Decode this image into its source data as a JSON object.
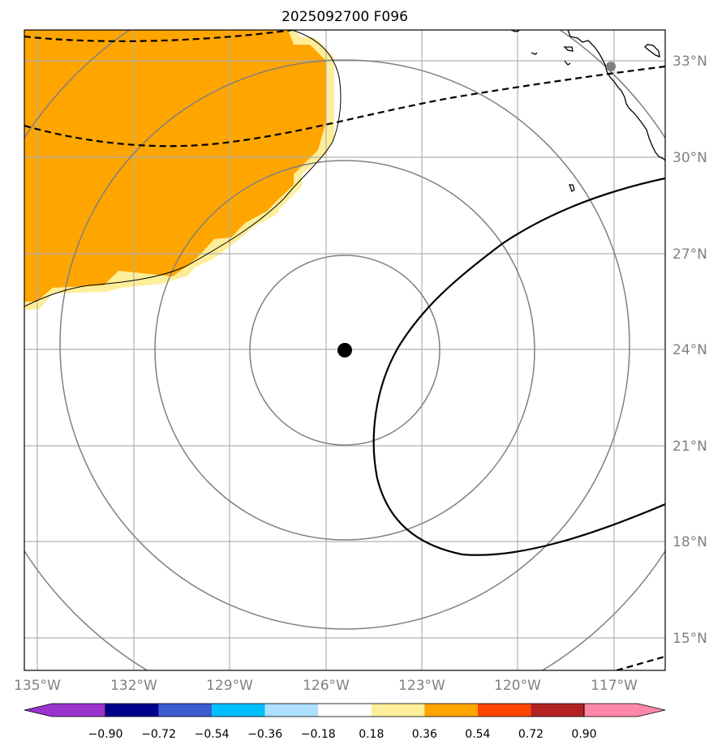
{
  "title": "2025092700 F096",
  "map": {
    "lon_ticks": [
      "135°W",
      "132°W",
      "129°W",
      "126°W",
      "123°W",
      "120°W",
      "117°W"
    ],
    "lat_ticks": [
      "33°N",
      "30°N",
      "27°N",
      "24°N",
      "21°N",
      "18°N",
      "15°N"
    ],
    "center": {
      "lon": -125.5,
      "lat": 24.0,
      "marker": "storm-center-dot"
    },
    "range_rings": "concentric circles around center",
    "shaded_field_color": "#FFA500",
    "shaded_edge_color": "#FFEE99",
    "coastline_color": "#000000",
    "grid_color": "#B0B0B0"
  },
  "colorbar": {
    "labels": [
      "−0.90",
      "−0.72",
      "−0.54",
      "−0.36",
      "−0.18",
      "0.18",
      "0.36",
      "0.54",
      "0.72",
      "0.90"
    ],
    "colors": [
      "#9933CC",
      "#00008B",
      "#3A5BD0",
      "#00BFFF",
      "#ADDFFF",
      "#FFFFFF",
      "#FFEE99",
      "#FFA500",
      "#FF4500",
      "#B22222",
      "#FF88AA"
    ]
  }
}
